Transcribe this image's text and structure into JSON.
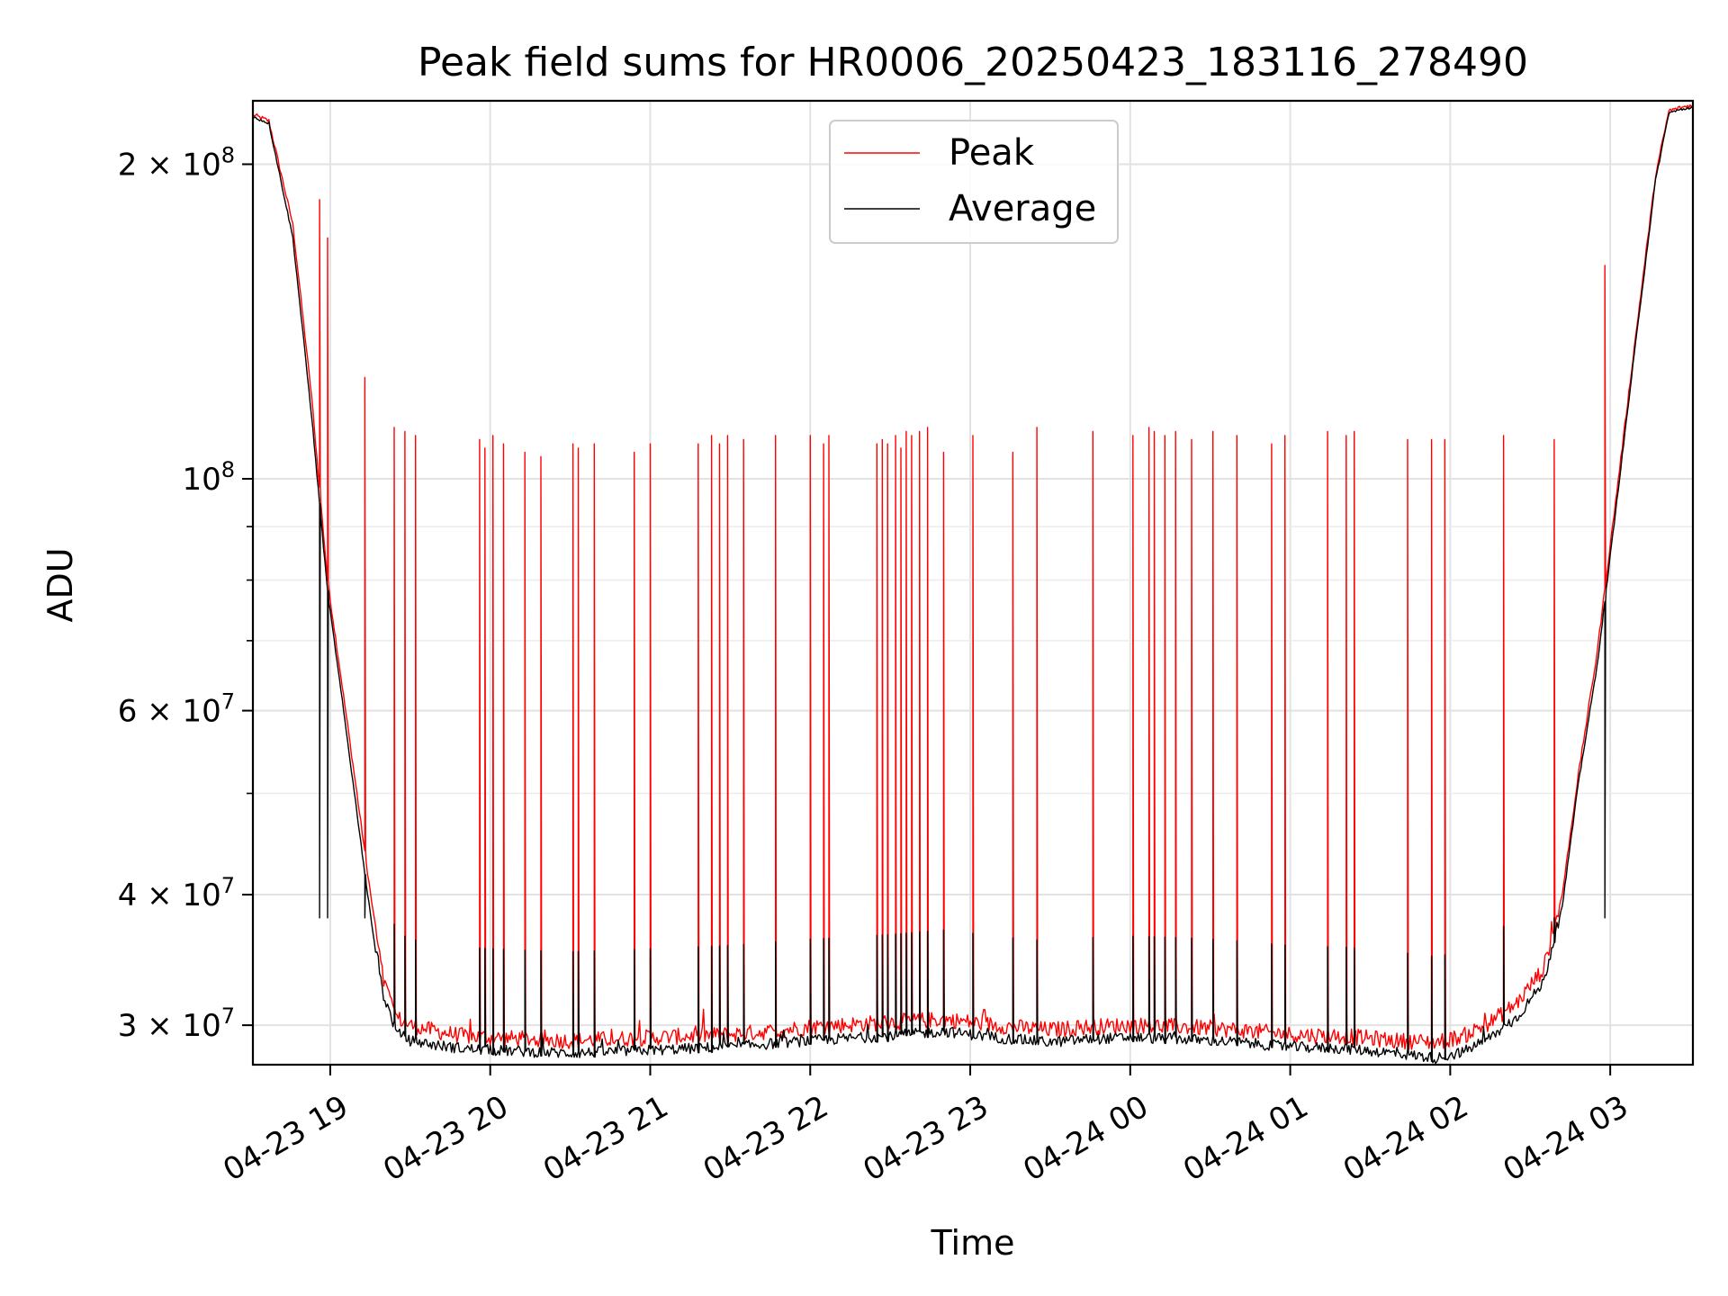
{
  "chart_data": {
    "type": "line",
    "title": "Peak field sums for HR0006_20250423_183116_278490",
    "xlabel": "Time",
    "ylabel": "ADU",
    "y_scale": "log",
    "ylim": [
      27500000,
      230000000
    ],
    "xlim": [
      "2025-04-23 18:31",
      "2025-04-24 03:31"
    ],
    "grid": true,
    "legend_position": "top-center",
    "x_ticks": [
      {
        "t": "2025-04-23 19:00",
        "label": "04-23 19"
      },
      {
        "t": "2025-04-23 20:00",
        "label": "04-23 20"
      },
      {
        "t": "2025-04-23 21:00",
        "label": "04-23 21"
      },
      {
        "t": "2025-04-23 22:00",
        "label": "04-23 22"
      },
      {
        "t": "2025-04-23 23:00",
        "label": "04-23 23"
      },
      {
        "t": "2025-04-24 00:00",
        "label": "04-24 00"
      },
      {
        "t": "2025-04-24 01:00",
        "label": "04-24 01"
      },
      {
        "t": "2025-04-24 02:00",
        "label": "04-24 02"
      },
      {
        "t": "2025-04-24 03:00",
        "label": "04-24 03"
      }
    ],
    "y_ticks": [
      {
        "value": 30000000,
        "base": "3 × 10",
        "exp": "7"
      },
      {
        "value": 40000000,
        "base": "4 × 10",
        "exp": "7"
      },
      {
        "value": 60000000,
        "base": "6 × 10",
        "exp": "7"
      },
      {
        "value": 100000000,
        "base": "10",
        "exp": "8"
      },
      {
        "value": 200000000,
        "base": "2 × 10",
        "exp": "8"
      }
    ],
    "y_minor_ticks": [
      50000000,
      70000000,
      80000000,
      90000000
    ],
    "colors": {
      "peak": "#ff0000",
      "average": "#000000"
    },
    "series": [
      {
        "name": "Peak",
        "color": "#ff0000",
        "points": [
          [
            "2025-04-23 18:31",
            223000000
          ],
          [
            "2025-04-23 18:37",
            220000000
          ],
          [
            "2025-04-23 18:46",
            175000000
          ],
          [
            "2025-04-23 18:53",
            120000000
          ],
          [
            "2025-04-23 18:59",
            80000000
          ],
          [
            "2025-04-23 19:05",
            62000000
          ],
          [
            "2025-04-23 19:10",
            50000000
          ],
          [
            "2025-04-23 19:14",
            42000000
          ],
          [
            "2025-04-23 19:17",
            37000000
          ],
          [
            "2025-04-23 19:20",
            33000000
          ],
          [
            "2025-04-23 19:25",
            30500000
          ],
          [
            "2025-04-23 19:30",
            30000000
          ],
          [
            "2025-04-23 19:40",
            29600000
          ],
          [
            "2025-04-23 19:50",
            29300000
          ],
          [
            "2025-04-23 20:00",
            29200000
          ],
          [
            "2025-04-23 20:15",
            29100000
          ],
          [
            "2025-04-23 20:30",
            29000000
          ],
          [
            "2025-04-23 20:45",
            29100000
          ],
          [
            "2025-04-23 21:00",
            29200000
          ],
          [
            "2025-04-23 21:15",
            29300000
          ],
          [
            "2025-04-23 21:30",
            29400000
          ],
          [
            "2025-04-23 21:45",
            29600000
          ],
          [
            "2025-04-23 22:00",
            29900000
          ],
          [
            "2025-04-23 22:30",
            30200000
          ],
          [
            "2025-04-23 22:50",
            30400000
          ],
          [
            "2025-04-23 23:00",
            30200000
          ],
          [
            "2025-04-23 23:15",
            29900000
          ],
          [
            "2025-04-23 23:30",
            29700000
          ],
          [
            "2025-04-23 23:45",
            29900000
          ],
          [
            "2025-04-24 00:00",
            30000000
          ],
          [
            "2025-04-24 00:20",
            29900000
          ],
          [
            "2025-04-24 00:40",
            29700000
          ],
          [
            "2025-04-24 01:00",
            29400000
          ],
          [
            "2025-04-24 01:20",
            29300000
          ],
          [
            "2025-04-24 01:40",
            29000000
          ],
          [
            "2025-04-24 01:55",
            28900000
          ],
          [
            "2025-04-24 02:05",
            29300000
          ],
          [
            "2025-04-24 02:15",
            30200000
          ],
          [
            "2025-04-24 02:25",
            31500000
          ],
          [
            "2025-04-24 02:35",
            34000000
          ],
          [
            "2025-04-24 02:42",
            40000000
          ],
          [
            "2025-04-24 02:48",
            52000000
          ],
          [
            "2025-04-24 02:55",
            68000000
          ],
          [
            "2025-04-24 03:02",
            95000000
          ],
          [
            "2025-04-24 03:10",
            140000000
          ],
          [
            "2025-04-24 03:17",
            195000000
          ],
          [
            "2025-04-24 03:22",
            225000000
          ],
          [
            "2025-04-24 03:31",
            228000000
          ]
        ],
        "spikes": [
          [
            "2025-04-23 18:56",
            185000000
          ],
          [
            "2025-04-23 18:59",
            170000000
          ],
          [
            "2025-04-23 19:13",
            125000000
          ],
          [
            "2025-04-23 19:24",
            112000000
          ],
          [
            "2025-04-23 19:28",
            111000000
          ],
          [
            "2025-04-23 19:32",
            110000000
          ],
          [
            "2025-04-23 19:56",
            109000000
          ],
          [
            "2025-04-23 19:58",
            107000000
          ],
          [
            "2025-04-23 20:01",
            110000000
          ],
          [
            "2025-04-23 20:05",
            108000000
          ],
          [
            "2025-04-23 20:13",
            106000000
          ],
          [
            "2025-04-23 20:19",
            105000000
          ],
          [
            "2025-04-23 20:31",
            108000000
          ],
          [
            "2025-04-23 20:33",
            107000000
          ],
          [
            "2025-04-23 20:39",
            108000000
          ],
          [
            "2025-04-23 20:54",
            106000000
          ],
          [
            "2025-04-23 21:00",
            108000000
          ],
          [
            "2025-04-23 21:18",
            108000000
          ],
          [
            "2025-04-23 21:23",
            110000000
          ],
          [
            "2025-04-23 21:26",
            108000000
          ],
          [
            "2025-04-23 21:29",
            110000000
          ],
          [
            "2025-04-23 21:35",
            109000000
          ],
          [
            "2025-04-23 21:47",
            110000000
          ],
          [
            "2025-04-23 22:00",
            110000000
          ],
          [
            "2025-04-23 22:05",
            108000000
          ],
          [
            "2025-04-23 22:07",
            110000000
          ],
          [
            "2025-04-23 22:25",
            108000000
          ],
          [
            "2025-04-23 22:27",
            109000000
          ],
          [
            "2025-04-23 22:29",
            108000000
          ],
          [
            "2025-04-23 22:32",
            110000000
          ],
          [
            "2025-04-23 22:34",
            107000000
          ],
          [
            "2025-04-23 22:36",
            111000000
          ],
          [
            "2025-04-23 22:38",
            110000000
          ],
          [
            "2025-04-23 22:41",
            111000000
          ],
          [
            "2025-04-23 22:44",
            112000000
          ],
          [
            "2025-04-23 22:50",
            106000000
          ],
          [
            "2025-04-23 23:01",
            110000000
          ],
          [
            "2025-04-23 23:16",
            106000000
          ],
          [
            "2025-04-23 23:25",
            112000000
          ],
          [
            "2025-04-23 23:46",
            111000000
          ],
          [
            "2025-04-24 00:01",
            110000000
          ],
          [
            "2025-04-24 00:07",
            112000000
          ],
          [
            "2025-04-24 00:09",
            111000000
          ],
          [
            "2025-04-24 00:13",
            110000000
          ],
          [
            "2025-04-24 00:17",
            111000000
          ],
          [
            "2025-04-24 00:23",
            109000000
          ],
          [
            "2025-04-24 00:31",
            111000000
          ],
          [
            "2025-04-24 00:40",
            110000000
          ],
          [
            "2025-04-24 00:53",
            108000000
          ],
          [
            "2025-04-24 00:58",
            110000000
          ],
          [
            "2025-04-24 01:14",
            111000000
          ],
          [
            "2025-04-24 01:21",
            110000000
          ],
          [
            "2025-04-24 01:24",
            111000000
          ],
          [
            "2025-04-24 01:44",
            109000000
          ],
          [
            "2025-04-24 01:53",
            109000000
          ],
          [
            "2025-04-24 01:58",
            109000000
          ],
          [
            "2025-04-24 02:20",
            110000000
          ],
          [
            "2025-04-24 02:39",
            109000000
          ],
          [
            "2025-04-24 02:58",
            160000000
          ]
        ]
      },
      {
        "name": "Average",
        "color": "#000000",
        "points": [
          [
            "2025-04-23 18:31",
            222000000
          ],
          [
            "2025-04-23 18:37",
            219000000
          ],
          [
            "2025-04-23 18:46",
            170000000
          ],
          [
            "2025-04-23 18:53",
            115000000
          ],
          [
            "2025-04-23 18:59",
            78000000
          ],
          [
            "2025-04-23 19:05",
            60000000
          ],
          [
            "2025-04-23 19:10",
            48000000
          ],
          [
            "2025-04-23 19:14",
            40000000
          ],
          [
            "2025-04-23 19:17",
            35500000
          ],
          [
            "2025-04-23 19:20",
            32000000
          ],
          [
            "2025-04-23 19:25",
            29500000
          ],
          [
            "2025-04-23 19:30",
            29000000
          ],
          [
            "2025-04-23 19:40",
            28700000
          ],
          [
            "2025-04-23 19:50",
            28500000
          ],
          [
            "2025-04-23 20:00",
            28400000
          ],
          [
            "2025-04-23 20:15",
            28300000
          ],
          [
            "2025-04-23 20:30",
            28200000
          ],
          [
            "2025-04-23 20:45",
            28300000
          ],
          [
            "2025-04-23 21:00",
            28400000
          ],
          [
            "2025-04-23 21:15",
            28500000
          ],
          [
            "2025-04-23 21:30",
            28600000
          ],
          [
            "2025-04-23 21:45",
            28800000
          ],
          [
            "2025-04-23 22:00",
            29000000
          ],
          [
            "2025-04-23 22:30",
            29300000
          ],
          [
            "2025-04-23 22:50",
            29600000
          ],
          [
            "2025-04-23 23:00",
            29400000
          ],
          [
            "2025-04-23 23:15",
            29100000
          ],
          [
            "2025-04-23 23:30",
            28900000
          ],
          [
            "2025-04-23 23:45",
            29100000
          ],
          [
            "2025-04-24 00:00",
            29200000
          ],
          [
            "2025-04-24 00:20",
            29100000
          ],
          [
            "2025-04-24 00:40",
            28900000
          ],
          [
            "2025-04-24 01:00",
            28600000
          ],
          [
            "2025-04-24 01:20",
            28500000
          ],
          [
            "2025-04-24 01:40",
            28200000
          ],
          [
            "2025-04-24 01:55",
            27900000
          ],
          [
            "2025-04-24 02:05",
            28300000
          ],
          [
            "2025-04-24 02:15",
            29200000
          ],
          [
            "2025-04-24 02:25",
            30500000
          ],
          [
            "2025-04-24 02:35",
            33000000
          ],
          [
            "2025-04-24 02:42",
            39000000
          ],
          [
            "2025-04-24 02:48",
            51000000
          ],
          [
            "2025-04-24 02:55",
            66000000
          ],
          [
            "2025-04-24 03:02",
            93000000
          ],
          [
            "2025-04-24 03:10",
            138000000
          ],
          [
            "2025-04-24 03:17",
            193000000
          ],
          [
            "2025-04-24 03:22",
            224000000
          ],
          [
            "2025-04-24 03:31",
            227000000
          ]
        ]
      }
    ]
  }
}
